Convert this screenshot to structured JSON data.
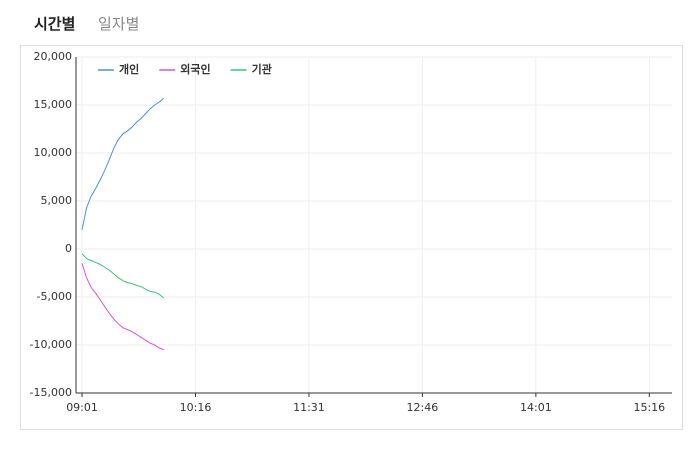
{
  "tabs": [
    "시간별",
    "일자별"
  ],
  "chart_data": {
    "type": "line",
    "x": [
      "09:01",
      "09:04",
      "09:07",
      "09:10",
      "09:13",
      "09:16",
      "09:19",
      "09:22",
      "09:25",
      "09:28",
      "09:31",
      "09:34",
      "09:37",
      "09:40",
      "09:43",
      "09:46",
      "09:49",
      "09:52",
      "09:55"
    ],
    "series": [
      {
        "name": "개인",
        "color": "#4a8fdc",
        "values": [
          2000,
          4300,
          5500,
          6300,
          7200,
          8200,
          9300,
          10500,
          11400,
          12000,
          12300,
          12700,
          13200,
          13600,
          14100,
          14600,
          15000,
          15300,
          15700
        ]
      },
      {
        "name": "외국인",
        "color": "#e04fd6",
        "values": [
          -1500,
          -3000,
          -4000,
          -4600,
          -5300,
          -6000,
          -6700,
          -7300,
          -7800,
          -8200,
          -8400,
          -8600,
          -8900,
          -9200,
          -9500,
          -9800,
          -10000,
          -10300,
          -10500
        ]
      },
      {
        "name": "기관",
        "color": "#2ecc71",
        "values": [
          -500,
          -1000,
          -1200,
          -1400,
          -1600,
          -1900,
          -2200,
          -2600,
          -3000,
          -3300,
          -3500,
          -3600,
          -3800,
          -3900,
          -4200,
          -4400,
          -4500,
          -4700,
          -5100
        ]
      }
    ],
    "xlim": [
      "08:57",
      "15:31"
    ],
    "xticks": [
      "09:01",
      "10:16",
      "11:31",
      "12:46",
      "14:01",
      "15:16"
    ],
    "ylim": [
      -15000,
      20000
    ],
    "yticks": [
      {
        "value": -15000,
        "label": "-15,000"
      },
      {
        "value": -10000,
        "label": "-10,000"
      },
      {
        "value": -5000,
        "label": "-5,000"
      },
      0,
      {
        "value": 5000,
        "label": "5,000"
      },
      {
        "value": 10000,
        "label": "10,000"
      },
      {
        "value": 15000,
        "label": "15,000"
      },
      {
        "value": 20000,
        "label": "20,000"
      }
    ],
    "grid": true,
    "legend": "top-left"
  }
}
